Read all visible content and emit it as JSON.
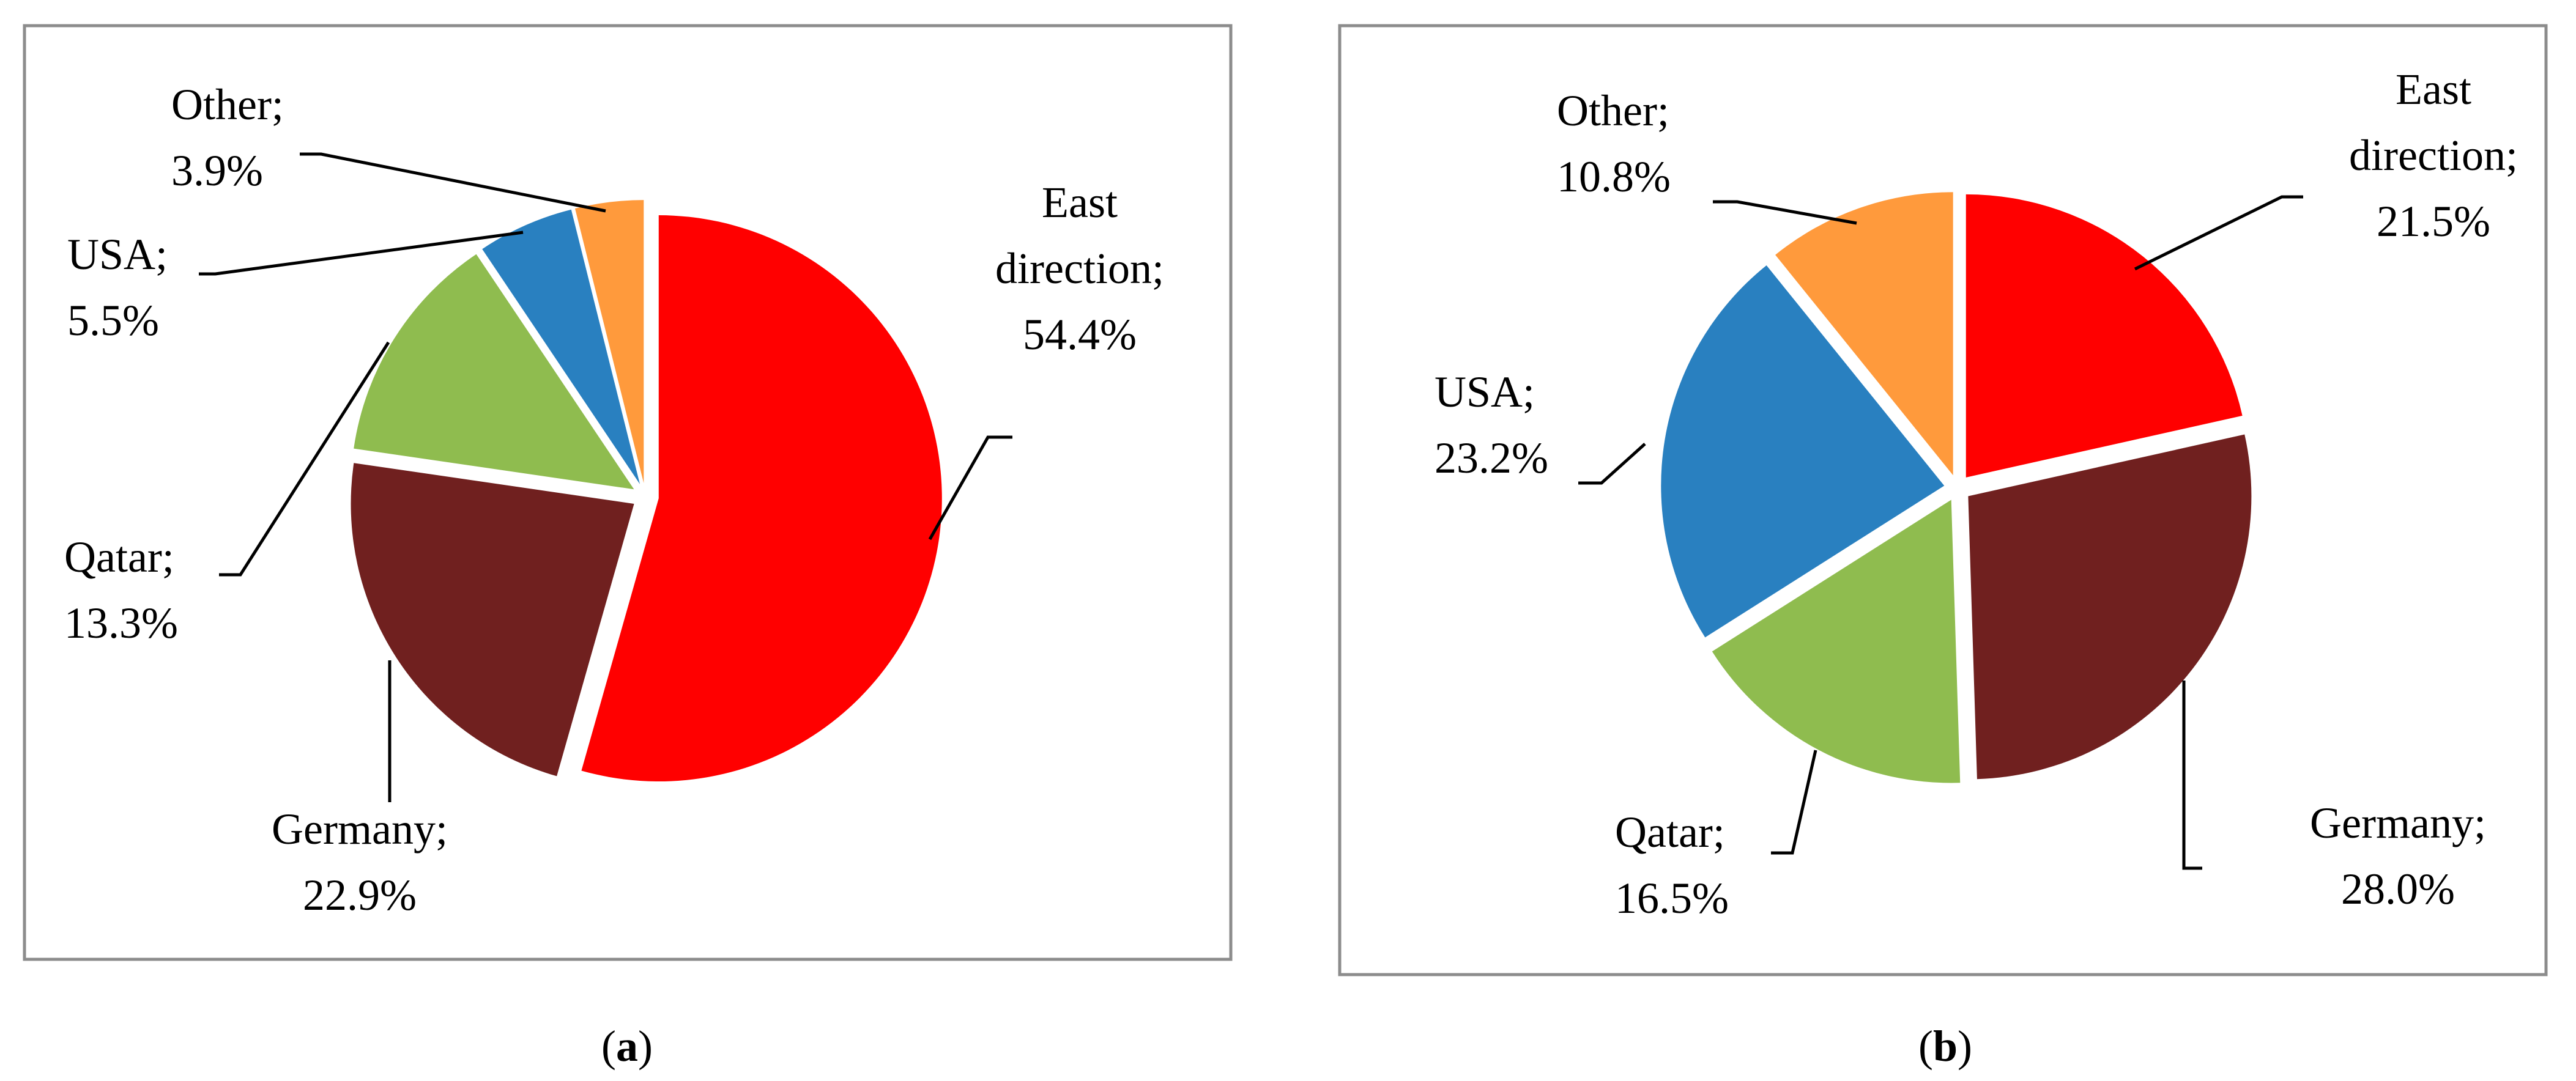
{
  "chart_data": [
    {
      "type": "pie",
      "panel_label": "a",
      "categories": [
        "East direction",
        "Germany",
        "Qatar",
        "USA",
        "Other"
      ],
      "values": [
        54.4,
        22.9,
        13.3,
        5.5,
        3.9
      ],
      "data_labels": [
        [
          "East",
          "direction;",
          "54.4%"
        ],
        [
          "Germany;",
          "22.9%"
        ],
        [
          "Qatar;",
          "13.3%"
        ],
        [
          "USA;",
          "5.5%"
        ],
        [
          "Other;",
          "3.9%"
        ]
      ],
      "colors": [
        "#ff0000",
        "#70201f",
        "#8fbc4f",
        "#2980c0",
        "#ff9a3c"
      ],
      "start_angle_deg": 0,
      "direction": "clockwise",
      "legend": "none"
    },
    {
      "type": "pie",
      "panel_label": "b",
      "categories": [
        "East direction",
        "Germany",
        "Qatar",
        "USA",
        "Other"
      ],
      "values": [
        21.5,
        28.0,
        16.5,
        23.2,
        10.8
      ],
      "data_labels": [
        [
          "East",
          "direction;",
          "21.5%"
        ],
        [
          "Germany;",
          "28.0%"
        ],
        [
          "Qatar;",
          "16.5%"
        ],
        [
          "USA;",
          "23.2%"
        ],
        [
          "Other;",
          "10.8%"
        ]
      ],
      "colors": [
        "#ff0000",
        "#70201f",
        "#8fbc4f",
        "#2980c0",
        "#ff9a3c"
      ],
      "start_angle_deg": 0,
      "direction": "clockwise",
      "legend": "none"
    }
  ],
  "captions": [
    {
      "open": "(",
      "letter": "a",
      "close": ")"
    },
    {
      "open": "(",
      "letter": "b",
      "close": ")"
    }
  ]
}
